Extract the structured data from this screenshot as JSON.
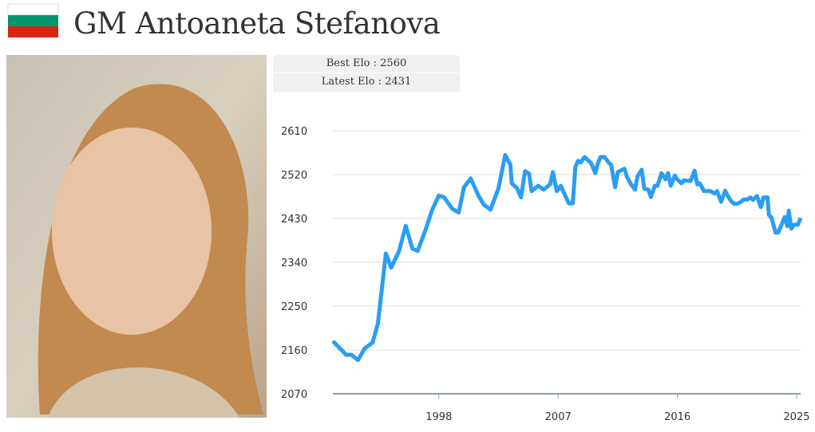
{
  "header": {
    "title": "GM Antoaneta Stefanova"
  },
  "info": [
    {
      "label": "Best Elo :",
      "value": 2560
    },
    {
      "label": "Latest Elo :",
      "value": 2431
    }
  ],
  "chart_data": {
    "type": "line",
    "color": "#2a9df4",
    "grid": true,
    "x": [
      1990.0,
      1991.0,
      1991.4,
      1991.9,
      1992.4,
      1993.0,
      1993.4,
      1994.0,
      1994.4,
      1995.0,
      1995.5,
      1996.0,
      1996.4,
      1997.0,
      1997.5,
      1998.0,
      1998.4,
      1999.0,
      1999.5,
      1999.9,
      2000.4,
      2001.0,
      2001.4,
      2001.9,
      2002.5,
      2003.0,
      2003.4,
      2003.5,
      2003.9,
      2004.2,
      2004.5,
      2004.8,
      2005.0,
      2005.5,
      2005.9,
      2006.4,
      2006.6,
      2006.9,
      2007.2,
      2007.8,
      2008.1,
      2008.3,
      2008.5,
      2008.7,
      2009.0,
      2009.5,
      2009.8,
      2010.0,
      2010.2,
      2010.5,
      2010.8,
      2011.0,
      2011.3,
      2011.5,
      2012.0,
      2012.2,
      2012.5,
      2012.8,
      2013.0,
      2013.3,
      2013.5,
      2013.8,
      2014.0,
      2014.3,
      2014.5,
      2014.8,
      2015.1,
      2015.3,
      2015.5,
      2015.8,
      2016.0,
      2016.3,
      2016.5,
      2016.8,
      2017.0,
      2017.3,
      2017.5,
      2017.7,
      2018.0,
      2018.3,
      2018.5,
      2018.8,
      2019.0,
      2019.3,
      2019.6,
      2019.8,
      2020.1,
      2020.3,
      2020.5,
      2020.8,
      2021.0,
      2021.3,
      2021.5,
      2021.7,
      2022.0,
      2022.3,
      2022.5,
      2022.8,
      2022.9,
      2023.1,
      2023.4,
      2023.6,
      2023.9,
      2024.1,
      2024.3,
      2024.4,
      2024.6,
      2024.8,
      2025.1,
      2025.3
    ],
    "values": [
      2178,
      2150,
      2150,
      2139,
      2163,
      2175,
      2214,
      2358,
      2329,
      2363,
      2415,
      2368,
      2363,
      2407,
      2448,
      2477,
      2473,
      2450,
      2442,
      2494,
      2512,
      2476,
      2458,
      2448,
      2492,
      2560,
      2540,
      2502,
      2492,
      2473,
      2527,
      2522,
      2486,
      2497,
      2489,
      2500,
      2525,
      2486,
      2497,
      2461,
      2461,
      2535,
      2548,
      2545,
      2556,
      2543,
      2523,
      2543,
      2556,
      2556,
      2545,
      2540,
      2494,
      2525,
      2532,
      2515,
      2500,
      2489,
      2517,
      2530,
      2491,
      2489,
      2474,
      2497,
      2497,
      2523,
      2510,
      2523,
      2497,
      2518,
      2510,
      2502,
      2508,
      2507,
      2507,
      2528,
      2500,
      2502,
      2486,
      2486,
      2486,
      2481,
      2486,
      2464,
      2487,
      2476,
      2464,
      2460,
      2460,
      2464,
      2469,
      2469,
      2473,
      2468,
      2476,
      2453,
      2473,
      2473,
      2437,
      2432,
      2401,
      2401,
      2420,
      2433,
      2414,
      2446,
      2409,
      2417,
      2417,
      2431
    ],
    "xlim": [
      1990,
      2025.3
    ],
    "xticks": [
      1998,
      2007,
      2016,
      2025
    ],
    "ylim": [
      2070,
      2610
    ],
    "yticks": [
      2070,
      2160,
      2250,
      2340,
      2430,
      2520,
      2610
    ]
  }
}
